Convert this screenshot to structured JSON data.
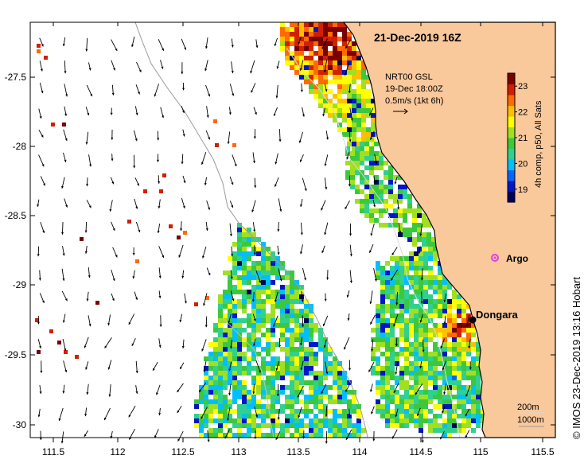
{
  "map": {
    "date_title": "21-Dec-2019 16Z",
    "current_legend": {
      "line1": "NRT00 GSL",
      "line2": "19-Dec 18:00Z",
      "line3": "0.5m/s (1kt 6h)"
    },
    "colorbar": {
      "label": "4h comp, p50, All Sats",
      "ticks": [
        "19",
        "20",
        "21",
        "22",
        "23"
      ],
      "range": [
        18.5,
        23.5
      ]
    },
    "places": {
      "dongara": "Dongara",
      "argo": "Argo"
    },
    "contours": {
      "c200": "200m",
      "c1000": "1000m"
    },
    "credit": "© IMOS 23-Dec-2019 13:16 Hobart",
    "x_ticks": [
      "111.5",
      "112",
      "112.5",
      "113",
      "113.5",
      "114",
      "114.5",
      "115",
      "115.5"
    ],
    "y_ticks": [
      "-27.5",
      "-28",
      "-28.5",
      "-29",
      "-29.5",
      "-30"
    ],
    "colors": {
      "land": "#f9c89b",
      "argo": "#e040e0",
      "dongara": "#000000"
    }
  }
}
